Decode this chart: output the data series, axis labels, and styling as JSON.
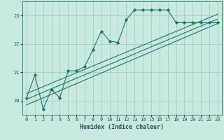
{
  "xlabel": "Humidex (Indice chaleur)",
  "background_color": "#c8e8e0",
  "grid_color": "#a0c8c0",
  "line_color": "#1a7a6e",
  "xlim": [
    -0.5,
    23.5
  ],
  "ylim": [
    19.5,
    23.5
  ],
  "yticks": [
    20,
    21,
    22,
    23
  ],
  "xticks": [
    0,
    1,
    2,
    3,
    4,
    5,
    6,
    7,
    8,
    9,
    10,
    11,
    12,
    13,
    14,
    15,
    16,
    17,
    18,
    19,
    20,
    21,
    22,
    23
  ],
  "y_main": [
    20.1,
    20.9,
    19.7,
    20.4,
    20.1,
    21.05,
    21.05,
    21.2,
    21.8,
    22.45,
    22.1,
    22.05,
    22.85,
    23.2,
    23.2,
    23.2,
    23.2,
    23.2,
    22.75,
    22.75,
    22.75,
    22.75,
    22.75,
    22.75
  ],
  "line1_x": [
    0,
    23
  ],
  "line1_y": [
    19.85,
    22.72
  ],
  "line2_x": [
    0,
    23
  ],
  "line2_y": [
    20.05,
    22.88
  ],
  "line3_x": [
    0,
    23
  ],
  "line3_y": [
    20.25,
    23.05
  ],
  "tick_labelsize": 5,
  "xlabel_fontsize": 6
}
